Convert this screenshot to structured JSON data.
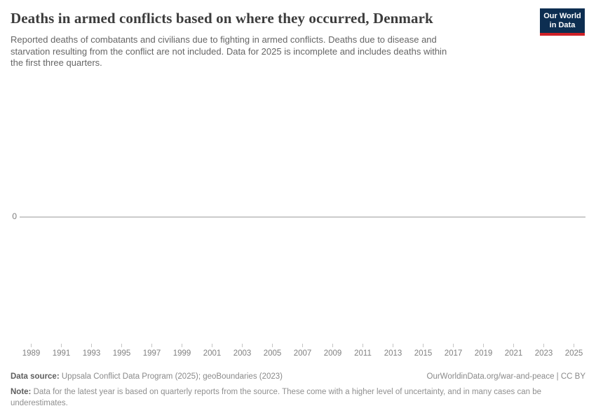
{
  "header": {
    "title": "Deaths in armed conflicts based on where they occurred, Denmark",
    "subtitle_lines": [
      "Reported deaths of combatants and civilians due to fighting in armed conflicts. Deaths due to disease and",
      "starvation resulting from the conflict are not included. Data for 2025 is incomplete and includes deaths within",
      "the first three quarters."
    ],
    "logo": {
      "line1": "Our World",
      "line2": "in Data"
    }
  },
  "chart_data": {
    "type": "line",
    "title": "Deaths in armed conflicts based on where they occurred, Denmark",
    "entity": "Denmark",
    "x": [
      1989,
      1990,
      1991,
      1992,
      1993,
      1994,
      1995,
      1996,
      1997,
      1998,
      1999,
      2000,
      2001,
      2002,
      2003,
      2004,
      2005,
      2006,
      2007,
      2008,
      2009,
      2010,
      2011,
      2012,
      2013,
      2014,
      2015,
      2016,
      2017,
      2018,
      2019,
      2020,
      2021,
      2022,
      2023,
      2024,
      2025
    ],
    "series": [
      {
        "name": "Denmark",
        "values": [
          0,
          0,
          0,
          0,
          0,
          0,
          0,
          0,
          0,
          0,
          0,
          0,
          0,
          0,
          0,
          0,
          0,
          0,
          0,
          0,
          0,
          0,
          0,
          0,
          0,
          0,
          0,
          0,
          0,
          0,
          0,
          0,
          0,
          0,
          0,
          0,
          0
        ]
      }
    ],
    "x_tick_labels": [
      "1989",
      "1991",
      "1993",
      "1995",
      "1997",
      "1999",
      "2001",
      "2003",
      "2005",
      "2007",
      "2009",
      "2011",
      "2013",
      "2015",
      "2017",
      "2019",
      "2021",
      "2023",
      "2025"
    ],
    "y_tick_labels": [
      "0"
    ],
    "xlabel": "",
    "ylabel": "",
    "legend": "none",
    "grid": "single horizontal zero line"
  },
  "axes": {
    "y_zero_label": "0"
  },
  "footer": {
    "datasource_label": "Data source:",
    "datasource_text": " Uppsala Conflict Data Program (2025); geoBoundaries (2023)",
    "link_text": "OurWorldinData.org/war-and-peace | CC BY",
    "note_label": "Note:",
    "note_text": " Data for the latest year is based on quarterly reports from the source. These come with a higher level of uncertainty, and in many cases can be underestimates."
  },
  "colors": {
    "logo_navy": "#0d2e51",
    "logo_red": "#cf2127",
    "gridline": "#c8c8c8",
    "title_text": "#3c3c3c",
    "subtitle_text": "#666666",
    "axis_text": "#818181",
    "footer_text": "#8a8a8a"
  }
}
